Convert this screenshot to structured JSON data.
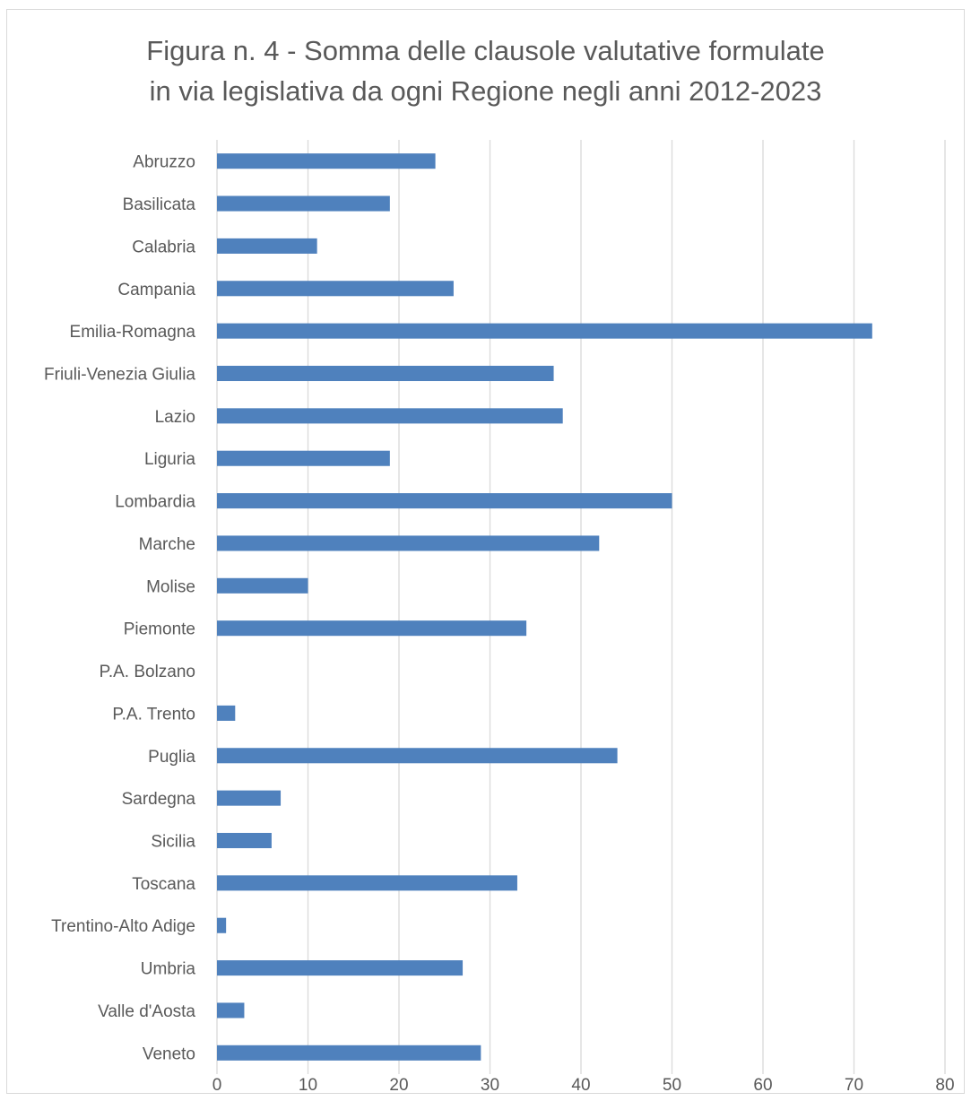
{
  "chart_data": {
    "type": "bar",
    "orientation": "horizontal",
    "title_lines": [
      "Figura n. 4 - Somma delle clausole valutative formulate",
      "in via legislativa da ogni Regione negli anni 2012-2023"
    ],
    "categories": [
      "Abruzzo",
      "Basilicata",
      "Calabria",
      "Campania",
      "Emilia-Romagna",
      "Friuli-Venezia Giulia",
      "Lazio",
      "Liguria",
      "Lombardia",
      "Marche",
      "Molise",
      "Piemonte",
      "P.A. Bolzano",
      "P.A. Trento",
      "Puglia",
      "Sardegna",
      "Sicilia",
      "Toscana",
      "Trentino-Alto Adige",
      "Umbria",
      "Valle d'Aosta",
      "Veneto"
    ],
    "values": [
      24,
      19,
      11,
      26,
      72,
      37,
      38,
      19,
      50,
      42,
      10,
      34,
      0,
      2,
      44,
      7,
      6,
      33,
      1,
      27,
      3,
      29
    ],
    "xlim": [
      0,
      80
    ],
    "xticks": [
      "0",
      "10",
      "20",
      "30",
      "40",
      "50",
      "60",
      "70",
      "80"
    ],
    "grid": "vertical",
    "legend": "none",
    "bar_color": "#4f81bd",
    "grid_color": "#d9d9d9"
  }
}
